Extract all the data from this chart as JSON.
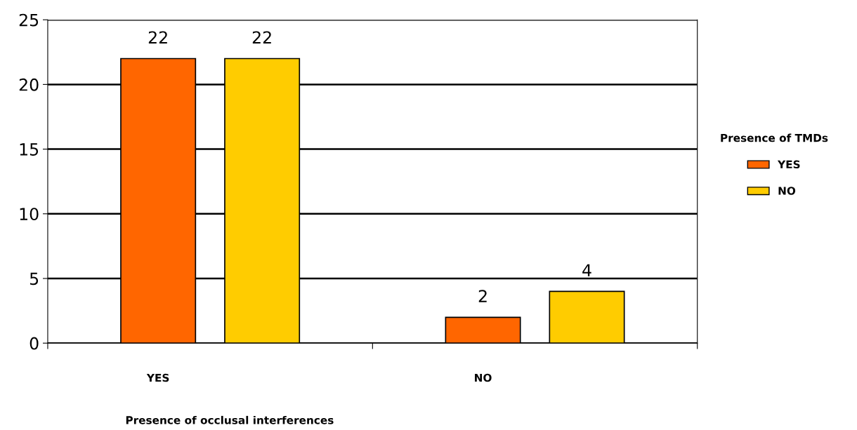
{
  "chart_data": {
    "type": "bar",
    "xlabel": "Presence of occlusal interferences",
    "legend_title": "Presence of TMDs",
    "categories": [
      "YES",
      "NO"
    ],
    "series": [
      {
        "name": "YES",
        "color": "#ff6600",
        "values": [
          22,
          2
        ]
      },
      {
        "name": "NO",
        "color": "#ffcc00",
        "values": [
          22,
          4
        ]
      }
    ],
    "ylim": [
      0,
      25
    ],
    "yticks": [
      0,
      5,
      10,
      15,
      20,
      25
    ],
    "grid": "y",
    "legend": "right",
    "data_labels": true
  }
}
